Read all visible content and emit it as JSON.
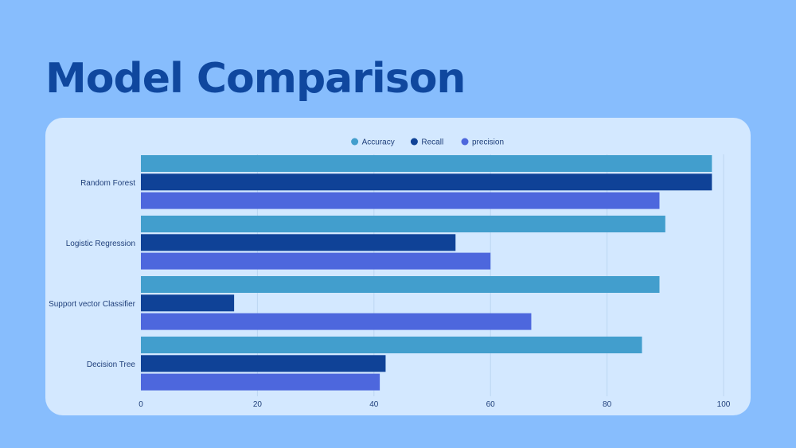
{
  "page": {
    "title": "Model Comparison"
  },
  "chart_data": {
    "type": "bar",
    "orientation": "horizontal",
    "title": "",
    "xlabel": "",
    "ylabel": "",
    "categories": [
      "Random Forest",
      "Logistic Regression",
      "Support vector Classifier",
      "Decision Tree"
    ],
    "series": [
      {
        "name": "Accuracy",
        "color": "#429ecd",
        "values": [
          98,
          90,
          89,
          86
        ]
      },
      {
        "name": "Recall",
        "color": "#0f4297",
        "values": [
          98,
          54,
          16,
          42
        ]
      },
      {
        "name": "precision",
        "color": "#4d67dd",
        "values": [
          89,
          60,
          67,
          41
        ]
      }
    ],
    "xlim": [
      0,
      100
    ],
    "xticks": [
      0,
      20,
      40,
      60,
      80,
      100
    ],
    "grid": "vertical",
    "legend": "top-center"
  }
}
